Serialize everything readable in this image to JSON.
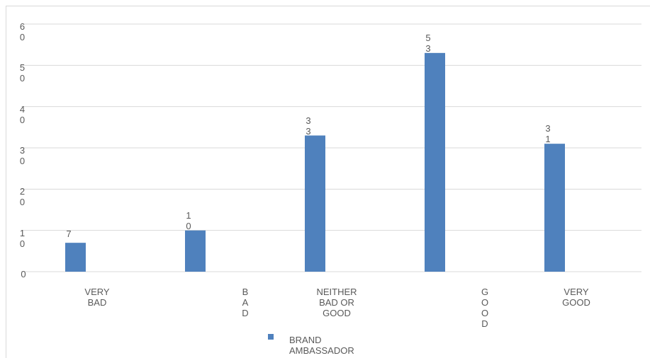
{
  "chart_data": {
    "type": "bar",
    "categories": [
      "VERY BAD",
      "BAD",
      "NEITHER BAD OR GOOD",
      "GOOD",
      "VERY GOOD"
    ],
    "series": [
      {
        "name": "BRAND AMBASSADOR",
        "color": "#4f81bd",
        "values": [
          7,
          10,
          33,
          53,
          31
        ]
      }
    ],
    "ylim": [
      0,
      60
    ],
    "yticks": [
      0,
      10,
      20,
      30,
      40,
      50,
      60
    ],
    "grid": true,
    "legend": "bottom"
  }
}
